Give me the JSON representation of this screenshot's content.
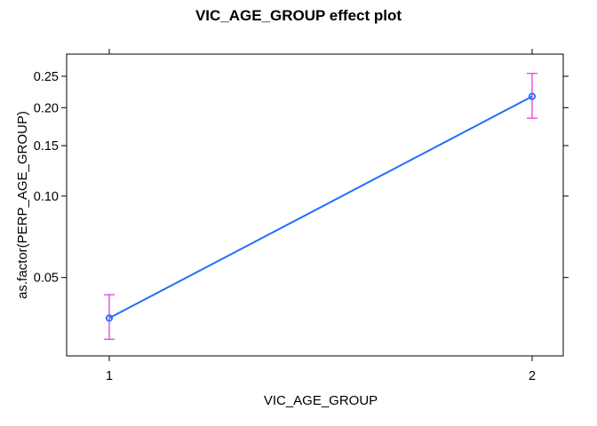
{
  "chart_data": {
    "type": "line",
    "title": "VIC_AGE_GROUP effect plot",
    "xlabel": "VIC_AGE_GROUP",
    "ylabel": "as.factor(PERP_AGE_GROUP)",
    "x": [
      1,
      2
    ],
    "x_tick_labels": [
      "1",
      "2"
    ],
    "y_scale": "logit",
    "y_ticks": [
      0.05,
      0.1,
      0.15,
      0.2,
      0.25
    ],
    "y_tick_labels": [
      "0.05",
      "0.10",
      "0.15",
      "0.20",
      "0.25"
    ],
    "ylim": [
      0.025,
      0.29
    ],
    "series": [
      {
        "values": [
          0.035,
          0.217
        ],
        "lower": [
          0.029,
          0.185
        ],
        "upper": [
          0.043,
          0.255
        ]
      }
    ],
    "grid": false,
    "colors": {
      "line": "#1f6fff",
      "error_bar": "#e83de3",
      "frame": "#000000"
    }
  }
}
